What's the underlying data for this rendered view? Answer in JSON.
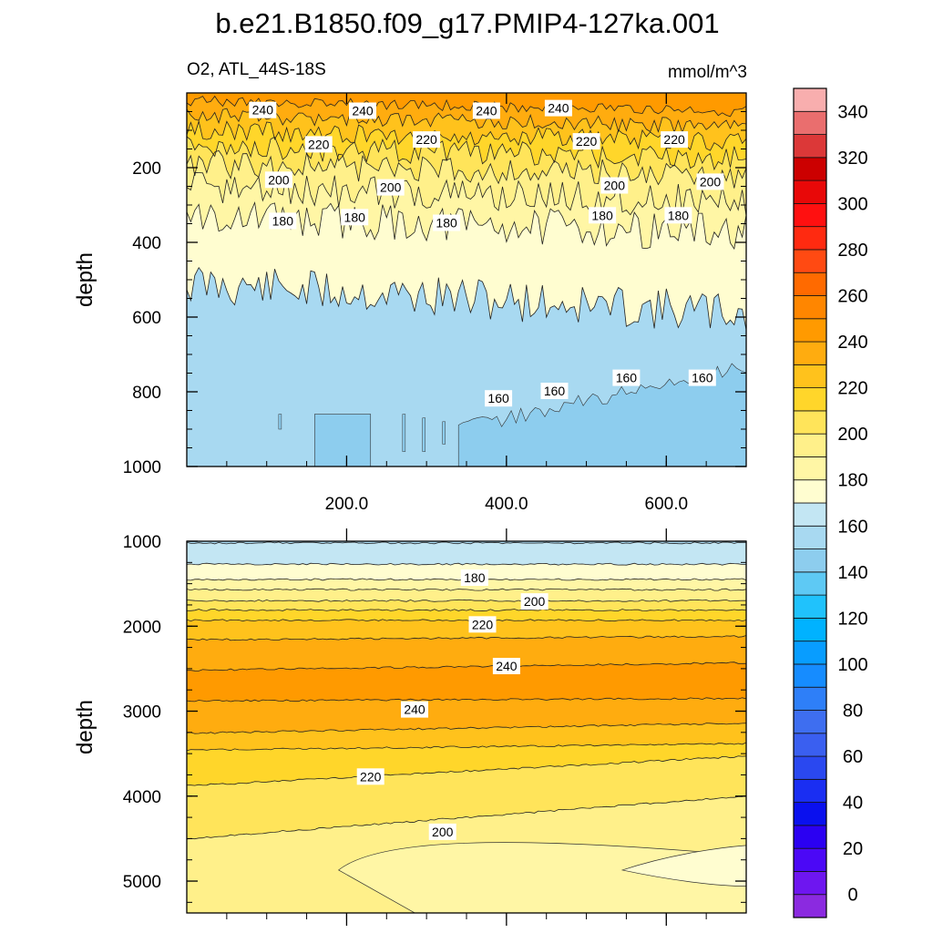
{
  "chart_data": {
    "type": "contour",
    "title": "b.e21.B1850.f09_g17.PMIP4-127ka.001",
    "variable_label": "O2, ATL_44S-18S",
    "units": "mmol/m^3",
    "x_tick_labels": [
      "200.0",
      "400.0",
      "600.0"
    ],
    "x_ticks": [
      200,
      400,
      600
    ],
    "xlim": [
      0,
      700
    ],
    "panels": [
      {
        "name": "upper",
        "ylabel": "depth",
        "ylim": [
          0,
          1000
        ],
        "y_ticks": [
          200,
          400,
          600,
          800,
          1000
        ],
        "y_tick_labels": [
          "200",
          "400",
          "600",
          "800",
          "1000"
        ],
        "contour_labels": [
          {
            "text": "240",
            "x": 95,
            "y": 48
          },
          {
            "text": "240",
            "x": 220,
            "y": 50
          },
          {
            "text": "240",
            "x": 375,
            "y": 50
          },
          {
            "text": "240",
            "x": 465,
            "y": 43
          },
          {
            "text": "220",
            "x": 165,
            "y": 140
          },
          {
            "text": "220",
            "x": 300,
            "y": 127
          },
          {
            "text": "220",
            "x": 500,
            "y": 132
          },
          {
            "text": "220",
            "x": 610,
            "y": 127
          },
          {
            "text": "200",
            "x": 115,
            "y": 235
          },
          {
            "text": "200",
            "x": 255,
            "y": 255
          },
          {
            "text": "200",
            "x": 535,
            "y": 250
          },
          {
            "text": "200",
            "x": 655,
            "y": 240
          },
          {
            "text": "180",
            "x": 120,
            "y": 345
          },
          {
            "text": "180",
            "x": 210,
            "y": 335
          },
          {
            "text": "180",
            "x": 325,
            "y": 350
          },
          {
            "text": "180",
            "x": 520,
            "y": 330
          },
          {
            "text": "180",
            "x": 615,
            "y": 330
          },
          {
            "text": "160",
            "x": 390,
            "y": 820
          },
          {
            "text": "160",
            "x": 460,
            "y": 800
          },
          {
            "text": "160",
            "x": 550,
            "y": 765
          },
          {
            "text": "160",
            "x": 645,
            "y": 765
          }
        ]
      },
      {
        "name": "lower",
        "ylabel": "depth",
        "ylim": [
          1000,
          5375
        ],
        "y_ticks": [
          1000,
          2000,
          3000,
          4000,
          5000
        ],
        "y_tick_labels": [
          "1000",
          "2000",
          "3000",
          "4000",
          "5000"
        ],
        "contour_labels": [
          {
            "text": "180",
            "x": 360,
            "y": 1440
          },
          {
            "text": "200",
            "x": 435,
            "y": 1720
          },
          {
            "text": "220",
            "x": 370,
            "y": 1990
          },
          {
            "text": "240",
            "x": 400,
            "y": 2480
          },
          {
            "text": "240",
            "x": 285,
            "y": 2990
          },
          {
            "text": "220",
            "x": 230,
            "y": 3780
          },
          {
            "text": "200",
            "x": 320,
            "y": 4430
          }
        ]
      }
    ],
    "colorbar": {
      "levels": [
        0,
        10,
        20,
        30,
        40,
        50,
        60,
        70,
        80,
        90,
        100,
        110,
        120,
        130,
        140,
        150,
        160,
        170,
        180,
        190,
        200,
        210,
        220,
        230,
        240,
        250,
        260,
        270,
        280,
        290,
        300,
        310,
        320,
        330,
        340,
        350
      ],
      "colors": [
        "#8b2ae0",
        "#6e16f0",
        "#4b08f6",
        "#2b00f2",
        "#0a10ee",
        "#1a2ef2",
        "#2a48f0",
        "#3a5ff0",
        "#3e6ef0",
        "#2e7ff8",
        "#168cff",
        "#089dff",
        "#00b2ff",
        "#20c2fc",
        "#5ec9f4",
        "#8dcdee",
        "#a8d9f1",
        "#c3e6f3",
        "#fffdd0",
        "#fff6a5",
        "#fff08a",
        "#ffe45a",
        "#ffd62a",
        "#ffc21c",
        "#ffac0f",
        "#ff9a00",
        "#ff8600",
        "#ff6a00",
        "#ff4a12",
        "#ff2a10",
        "#ff1010",
        "#e80808",
        "#cc0000",
        "#dc3838",
        "#ea6e6e",
        "#f8aeae"
      ],
      "tick_labels": [
        "0",
        "20",
        "40",
        "60",
        "80",
        "100",
        "120",
        "140",
        "160",
        "180",
        "200",
        "220",
        "240",
        "260",
        "280",
        "300",
        "320",
        "340"
      ]
    }
  }
}
